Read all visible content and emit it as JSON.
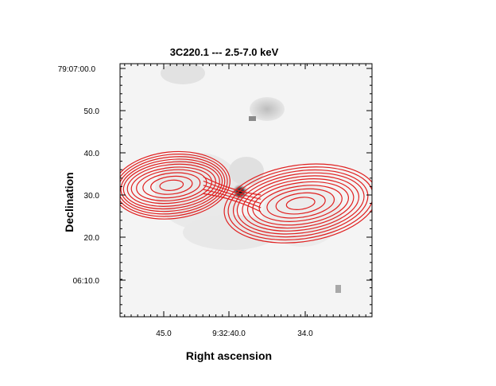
{
  "chart_data": {
    "type": "contour",
    "title": "3C220.1 --- 2.5-7.0 keV",
    "xlabel": "Right ascension",
    "ylabel": "Declination",
    "x_ticks": [
      {
        "label": "45.0",
        "value_s": 45.0
      },
      {
        "label": "9:32:40.0",
        "value_s": 40.0
      },
      {
        "label": "34.0",
        "value_s": 34.0
      }
    ],
    "y_ticks": [
      {
        "label": "79:07:00.0",
        "value_arcsec": 60
      },
      {
        "label": "50.0",
        "value_arcsec": 50
      },
      {
        "label": "40.0",
        "value_arcsec": 40
      },
      {
        "label": "30.0",
        "value_arcsec": 30
      },
      {
        "label": "20.0",
        "value_arcsec": 20
      },
      {
        "label": "06:10.0",
        "value_arcsec": 10
      }
    ],
    "xlim_seconds": [
      49.0,
      28.5
    ],
    "ylim_arcsec": [
      1.5,
      62.5
    ],
    "contour_color": "#e02020",
    "background_map": "greyscale X-ray image",
    "lobes": [
      {
        "name": "east",
        "ra_s": 44.4,
        "dec_arcsec": 32.3,
        "rx_seconds": [
          0.9,
          1.6,
          2.2,
          2.7,
          3.1,
          3.4,
          3.7,
          3.9,
          4.1,
          4.3,
          4.5
        ],
        "ry_arcsec": [
          1.2,
          2.1,
          2.9,
          3.6,
          4.2,
          4.9,
          5.5,
          6.1,
          6.7,
          7.3,
          7.9
        ]
      },
      {
        "name": "west",
        "ra_s": 34.5,
        "dec_arcsec": 28.0,
        "rx_seconds": [
          1.1,
          1.9,
          2.6,
          3.2,
          3.7,
          4.1,
          4.5,
          4.9,
          5.2,
          5.6,
          5.9
        ],
        "ry_arcsec": [
          1.4,
          2.4,
          3.3,
          4.1,
          4.9,
          5.6,
          6.3,
          7.0,
          7.7,
          8.4,
          9.1
        ]
      }
    ],
    "bridge_contours_dec_offsets_arcsec": [
      -2.0,
      -1.0,
      0.0,
      1.0,
      2.0
    ]
  }
}
